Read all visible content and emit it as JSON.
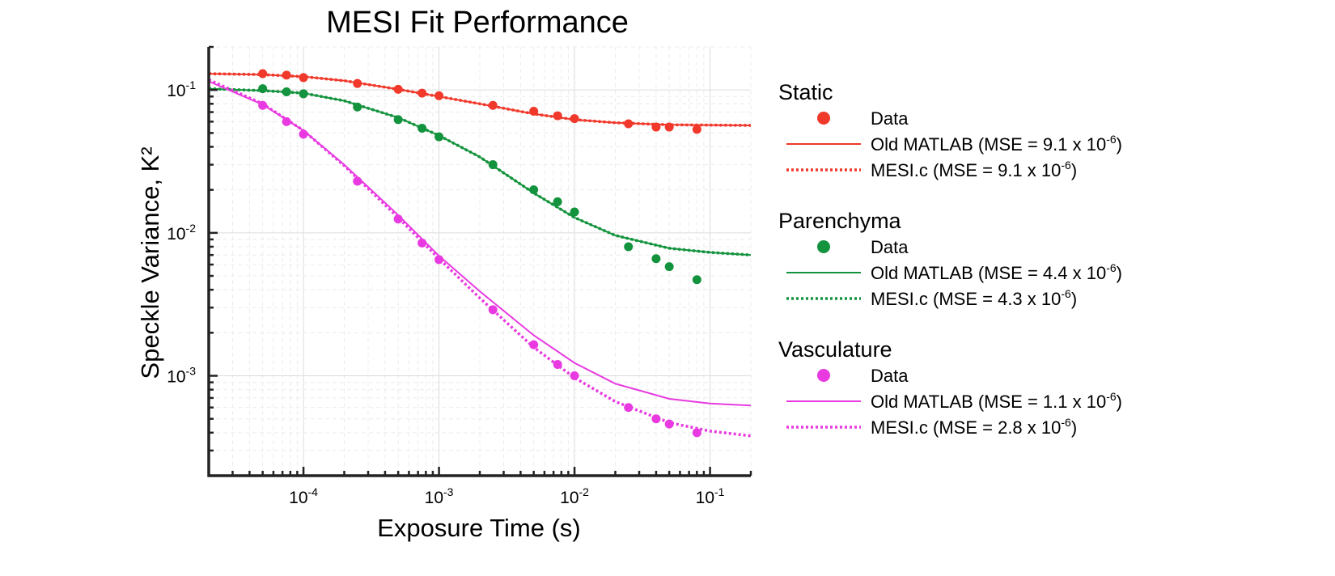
{
  "chart_data": {
    "type": "scatter",
    "title": "MESI Fit Performance",
    "xlabel": "Exposure Time (s)",
    "ylabel": "Speckle Variance, K²",
    "xscale": "log",
    "yscale": "log",
    "xlim": [
      2e-05,
      0.2
    ],
    "ylim": [
      0.0002,
      0.2
    ],
    "grid": true,
    "legend_position": "right",
    "x_ticks": [
      {
        "value": 0.0001,
        "base": "10",
        "exp": "-4"
      },
      {
        "value": 0.001,
        "base": "10",
        "exp": "-3"
      },
      {
        "value": 0.01,
        "base": "10",
        "exp": "-2"
      },
      {
        "value": 0.1,
        "base": "10",
        "exp": "-1"
      }
    ],
    "y_ticks": [
      {
        "value": 0.001,
        "base": "10",
        "exp": "-3"
      },
      {
        "value": 0.01,
        "base": "10",
        "exp": "-2"
      },
      {
        "value": 0.1,
        "base": "10",
        "exp": "-1"
      }
    ],
    "groups": [
      {
        "name": "Static",
        "color": "#f0382b",
        "x": [
          5e-05,
          7.5e-05,
          0.0001,
          0.00025,
          0.0005,
          0.00075,
          0.001,
          0.0025,
          0.005,
          0.0075,
          0.01,
          0.025,
          0.04,
          0.05,
          0.08
        ],
        "data": [
          0.13,
          0.127,
          0.122,
          0.111,
          0.101,
          0.095,
          0.091,
          0.078,
          0.071,
          0.066,
          0.063,
          0.058,
          0.055,
          0.055,
          0.053
        ],
        "old_matlab": {
          "label": "Old MATLAB (MSE = 9.1 x 10",
          "exp": "-6",
          "close": ")",
          "x": [
            2e-05,
            5e-05,
            0.0001,
            0.0002,
            0.0005,
            0.001,
            0.002,
            0.005,
            0.01,
            0.02,
            0.05,
            0.1,
            0.2
          ],
          "y": [
            0.13,
            0.128,
            0.124,
            0.116,
            0.101,
            0.09,
            0.08,
            0.068,
            0.062,
            0.059,
            0.057,
            0.0568,
            0.0565
          ]
        },
        "mesi_c": {
          "label": "MESI.c (MSE = 9.1 x 10",
          "exp": "-6",
          "close": ")"
        },
        "data_label": "Data"
      },
      {
        "name": "Parenchyma",
        "color": "#13933d",
        "x": [
          5e-05,
          7.5e-05,
          0.0001,
          0.00025,
          0.0005,
          0.00075,
          0.001,
          0.0025,
          0.005,
          0.0075,
          0.01,
          0.025,
          0.04,
          0.05,
          0.08
        ],
        "data": [
          0.102,
          0.097,
          0.094,
          0.076,
          0.062,
          0.054,
          0.047,
          0.03,
          0.02,
          0.0165,
          0.014,
          0.008,
          0.0066,
          0.0058,
          0.0047
        ],
        "old_matlab": {
          "label": "Old MATLAB (MSE = 4.4 x 10",
          "exp": "-6",
          "close": ")",
          "x": [
            2e-05,
            5e-05,
            0.0001,
            0.0002,
            0.0005,
            0.001,
            0.002,
            0.005,
            0.01,
            0.02,
            0.05,
            0.1,
            0.2
          ],
          "y": [
            0.102,
            0.099,
            0.095,
            0.084,
            0.064,
            0.048,
            0.034,
            0.019,
            0.0128,
            0.0096,
            0.0078,
            0.0073,
            0.007
          ]
        },
        "mesi_c": {
          "label": "MESI.c (MSE = 4.3 x 10",
          "exp": "-6",
          "close": ")"
        },
        "data_label": "Data"
      },
      {
        "name": "Vasculature",
        "color": "#e83ae0",
        "x": [
          5e-05,
          7.5e-05,
          0.0001,
          0.00025,
          0.0005,
          0.00075,
          0.001,
          0.0025,
          0.005,
          0.0075,
          0.01,
          0.025,
          0.04,
          0.05,
          0.08
        ],
        "data": [
          0.078,
          0.06,
          0.049,
          0.023,
          0.0125,
          0.0085,
          0.0065,
          0.0029,
          0.00165,
          0.0012,
          0.001,
          0.0006,
          0.0005,
          0.00046,
          0.0004
        ],
        "old_matlab": {
          "label": "Old MATLAB (MSE = 1.1 x 10",
          "exp": "-6",
          "close": ")",
          "x": [
            2e-05,
            5e-05,
            0.0001,
            0.0002,
            0.0005,
            0.001,
            0.002,
            0.005,
            0.01,
            0.02,
            0.05,
            0.1,
            0.2
          ],
          "y": [
            0.115,
            0.079,
            0.052,
            0.03,
            0.0133,
            0.0069,
            0.0039,
            0.00192,
            0.00123,
            0.00088,
            0.00069,
            0.00064,
            0.00062
          ]
        },
        "mesi_c": {
          "label": "MESI.c (MSE = 2.8 x 10",
          "exp": "-6",
          "close": ")",
          "x": [
            2e-05,
            5e-05,
            0.0001,
            0.0002,
            0.0005,
            0.001,
            0.002,
            0.005,
            0.01,
            0.02,
            0.05,
            0.1,
            0.2
          ],
          "y": [
            0.118,
            0.08,
            0.052,
            0.0295,
            0.0128,
            0.0066,
            0.0035,
            0.00158,
            0.00097,
            0.00066,
            0.00047,
            0.00041,
            0.00038
          ]
        },
        "data_label": "Data"
      }
    ]
  }
}
